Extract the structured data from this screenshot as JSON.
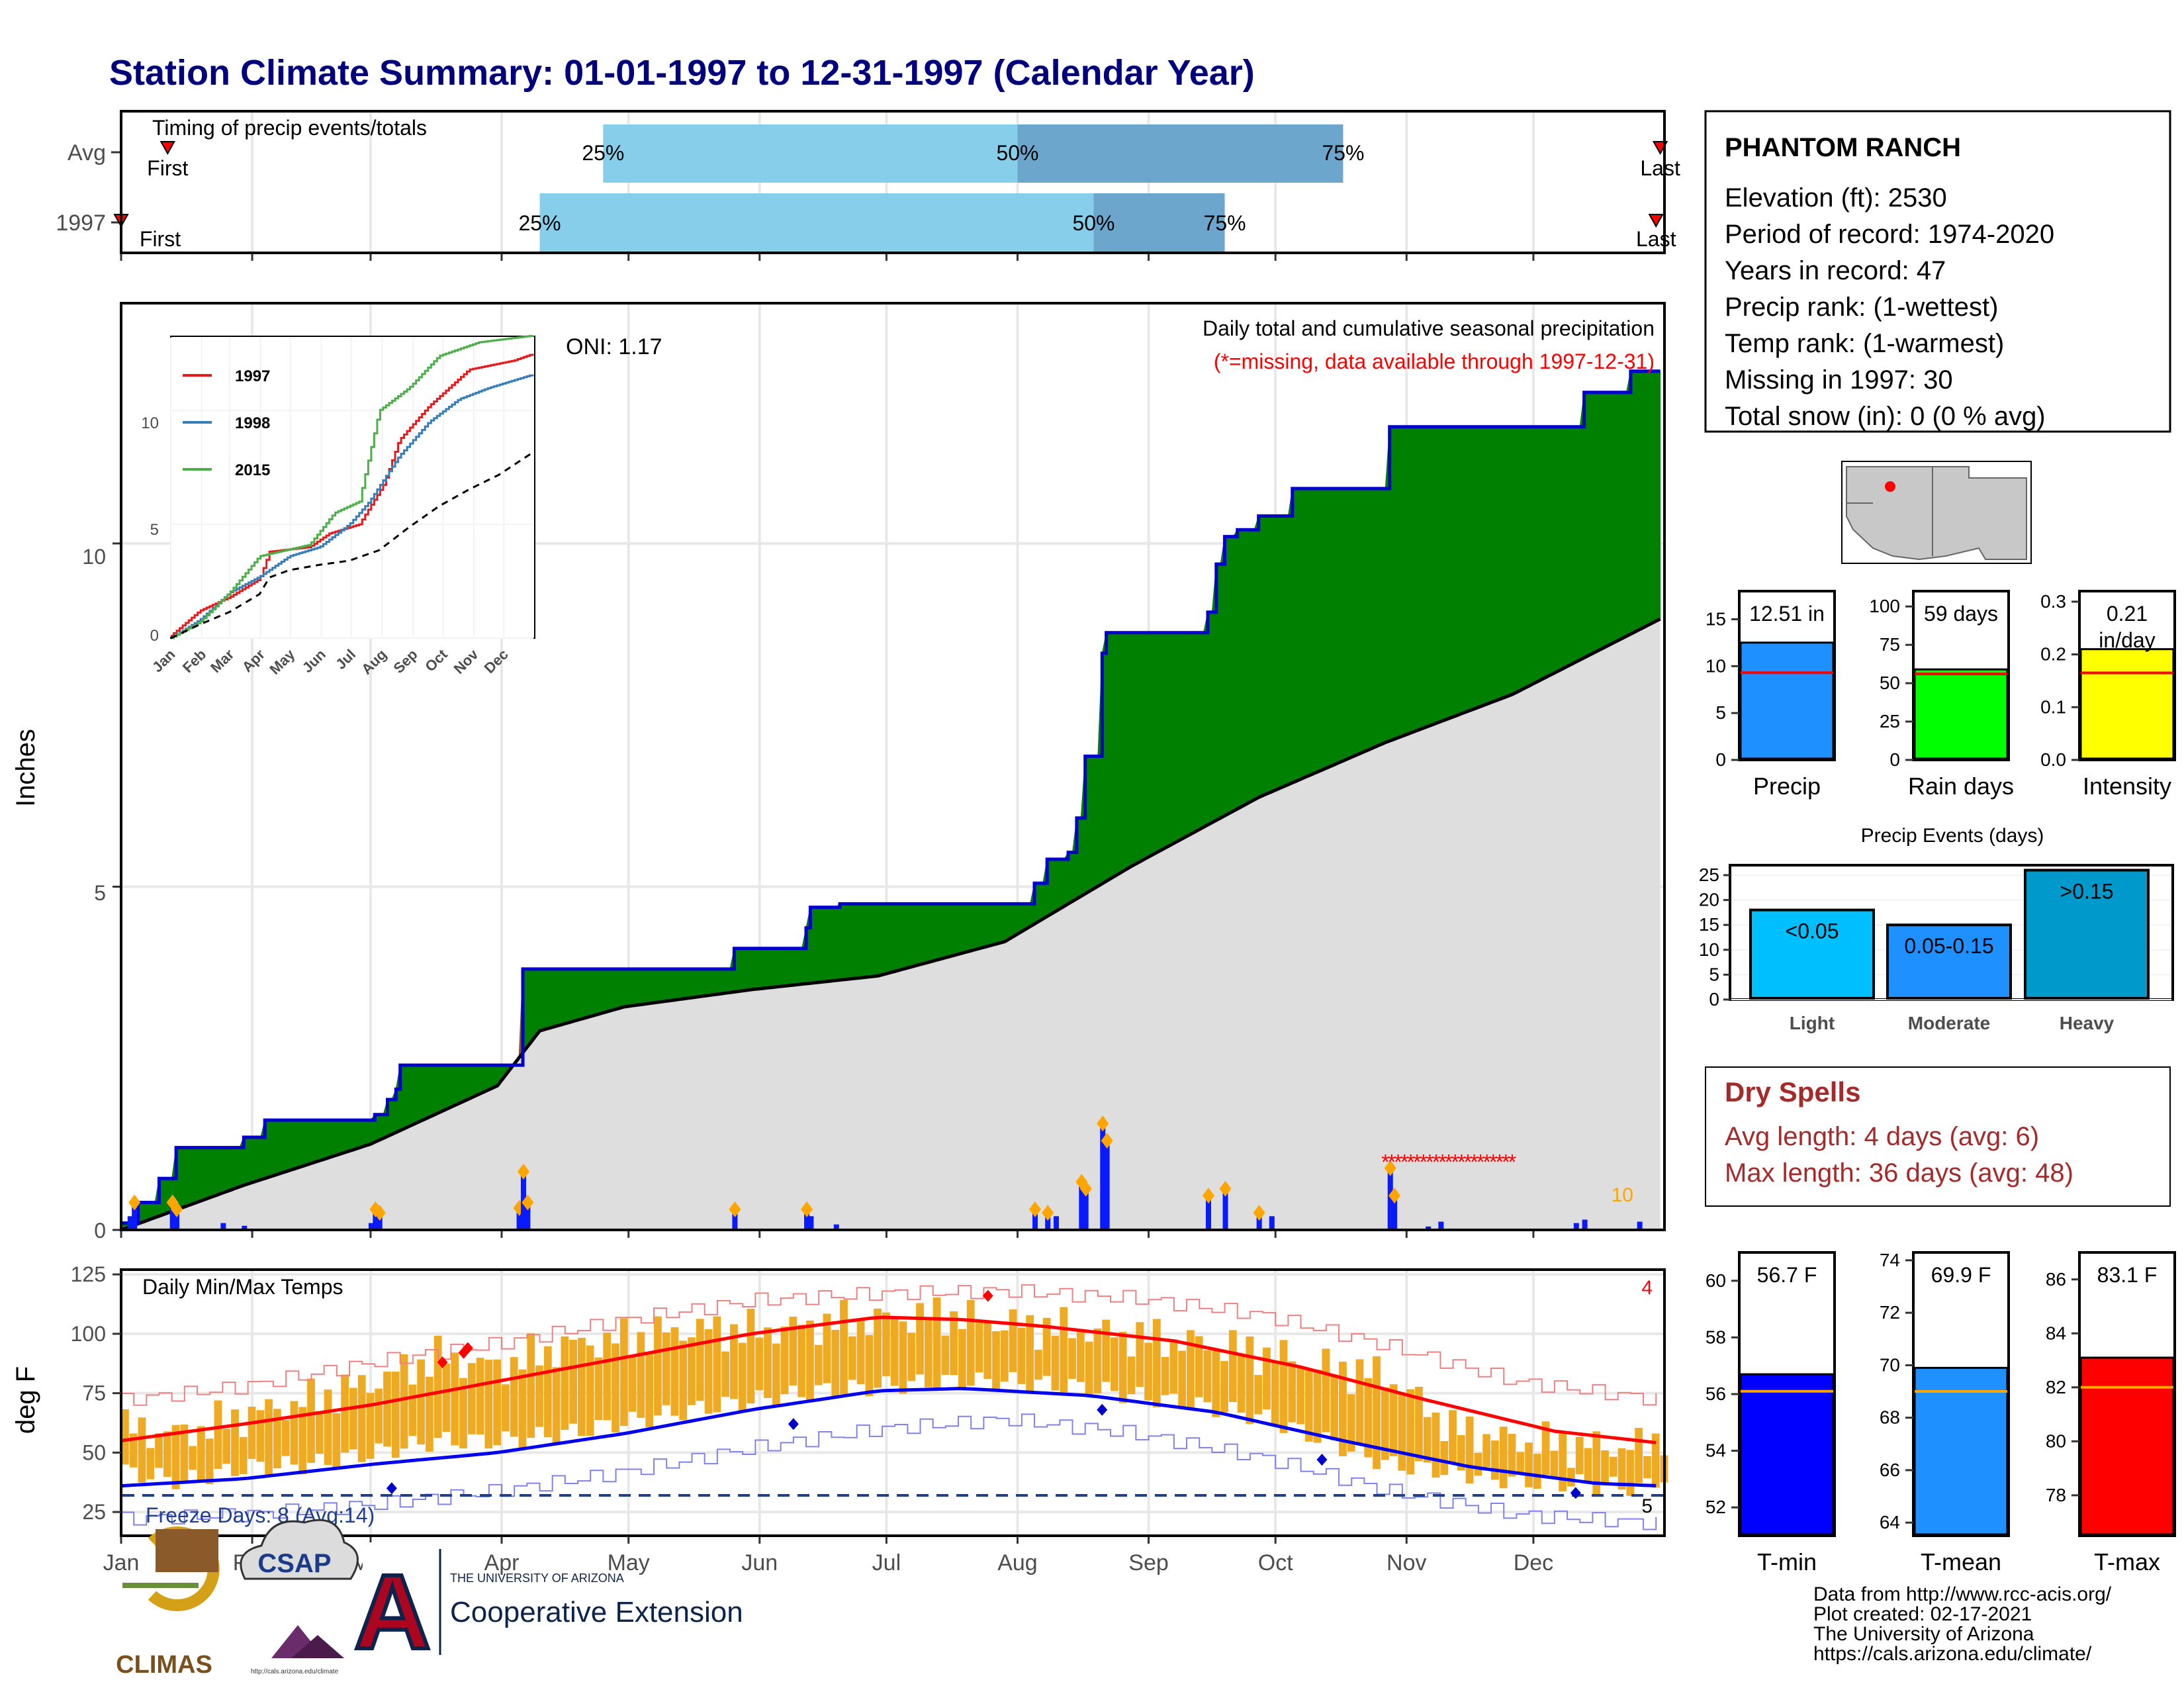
{
  "title": "Station Climate Summary: 01-01-1997 to 12-31-1997 (Calendar Year)",
  "colors": {
    "title": "#00007f",
    "precip_green": "#008000",
    "precip_line": "#0000cc",
    "dry_red": "#a52a2a",
    "q_light": "#87ceeb",
    "q_dark": "#6ca6cd",
    "temp_bar": "#eeaa22",
    "tmax": "#ff0000",
    "tmin": "#0000ee"
  },
  "timing": {
    "title": "Timing of precip events/totals",
    "rows": [
      {
        "label": "Avg",
        "first_label": "First",
        "last_label": "Last",
        "q25_label": "25%",
        "q50_label": "50%",
        "q75_label": "75%",
        "first": 12,
        "q25": 115,
        "q50": 213,
        "q75": 290,
        "last": 365
      },
      {
        "label": "1997",
        "first_label": "First",
        "last_label": "Last",
        "q25_label": "25%",
        "q50_label": "50%",
        "q75_label": "75%",
        "first": 1,
        "q25": 100,
        "q50": 231,
        "q75": 262,
        "last": 364
      }
    ]
  },
  "station": {
    "name": "PHANTOM RANCH",
    "lines": [
      "Elevation (ft): 2530",
      "Period of record: 1974-2020",
      "Years in record: 47",
      "Precip rank:  (1-wettest)",
      "Temp rank:  (1-warmest)",
      "Missing in 1997: 30",
      "Total snow (in): 0 (0 % avg)"
    ]
  },
  "precip_panel": {
    "ylabel": "Inches",
    "oni": "ONI: 1.17",
    "subtitle": "Daily total and cumulative seasonal precipitation",
    "missing_note": "(*=missing, data available through 1997-12-31)",
    "corner_count": "10",
    "y_ticks": [
      "0",
      "5",
      "10"
    ]
  },
  "inset": {
    "legend": [
      "1997",
      "1998",
      "2015"
    ],
    "y_ticks": [
      "0",
      "5",
      "10"
    ],
    "months": [
      "Jan",
      "Feb",
      "Mar",
      "Apr",
      "May",
      "Jun",
      "Jul",
      "Aug",
      "Sep",
      "Oct",
      "Nov",
      "Dec"
    ]
  },
  "temp_panel": {
    "title": "Daily Min/Max Temps",
    "ylabel": "deg F",
    "freeze_note": "Freeze Days: 8 (Avg:14)",
    "tmax_count": "4",
    "tmin_count": "5",
    "y_ticks": [
      "25",
      "50",
      "75",
      "100",
      "125"
    ]
  },
  "months": [
    "Jan",
    "Feb",
    "Mar",
    "Apr",
    "May",
    "Jun",
    "Jul",
    "Aug",
    "Sep",
    "Oct",
    "Nov",
    "Dec"
  ],
  "chart_data": [
    {
      "type": "area",
      "title": "Daily total and cumulative seasonal precipitation",
      "ylabel": "Inches",
      "ylim": [
        0,
        13.5
      ],
      "cumulative_1997": [
        [
          1,
          0.1
        ],
        [
          5,
          0.4
        ],
        [
          10,
          0.75
        ],
        [
          14,
          1.2
        ],
        [
          30,
          1.35
        ],
        [
          35,
          1.6
        ],
        [
          60,
          1.6
        ],
        [
          61,
          1.68
        ],
        [
          64,
          1.9
        ],
        [
          66,
          2.05
        ],
        [
          67,
          2.4
        ],
        [
          95,
          2.4
        ],
        [
          96,
          3.8
        ],
        [
          145,
          3.8
        ],
        [
          146,
          4.1
        ],
        [
          162,
          4.1
        ],
        [
          163,
          4.4
        ],
        [
          164,
          4.7
        ],
        [
          170,
          4.7
        ],
        [
          171,
          4.75
        ],
        [
          216,
          4.75
        ],
        [
          217,
          5.05
        ],
        [
          220,
          5.4
        ],
        [
          225,
          5.5
        ],
        [
          227,
          6.0
        ],
        [
          229,
          6.9
        ],
        [
          232,
          6.9
        ],
        [
          233,
          8.4
        ],
        [
          234,
          8.7
        ],
        [
          256,
          8.7
        ],
        [
          258,
          9.0
        ],
        [
          260,
          9.7
        ],
        [
          262,
          10.1
        ],
        [
          265,
          10.2
        ],
        [
          270,
          10.4
        ],
        [
          278,
          10.8
        ],
        [
          300,
          10.8
        ],
        [
          301,
          11.7
        ],
        [
          345,
          11.7
        ],
        [
          347,
          12.2
        ],
        [
          356,
          12.2
        ],
        [
          358,
          12.51
        ],
        [
          365,
          12.51
        ]
      ],
      "cumulative_avg": [
        [
          1,
          0
        ],
        [
          30,
          0.65
        ],
        [
          60,
          1.25
        ],
        [
          90,
          2.1
        ],
        [
          100,
          2.9
        ],
        [
          120,
          3.25
        ],
        [
          150,
          3.5
        ],
        [
          180,
          3.7
        ],
        [
          210,
          4.2
        ],
        [
          240,
          5.3
        ],
        [
          270,
          6.3
        ],
        [
          300,
          7.1
        ],
        [
          330,
          7.8
        ],
        [
          365,
          8.9
        ]
      ],
      "daily_1997": [
        [
          3,
          0.2
        ],
        [
          4,
          0.4
        ],
        [
          13,
          0.4
        ],
        [
          14,
          0.3
        ],
        [
          25,
          0.1
        ],
        [
          30,
          0.06
        ],
        [
          60,
          0.1
        ],
        [
          61,
          0.3
        ],
        [
          62,
          0.25
        ],
        [
          95,
          0.32
        ],
        [
          96,
          0.85
        ],
        [
          97,
          0.4
        ],
        [
          146,
          0.3
        ],
        [
          163,
          0.3
        ],
        [
          164,
          0.2
        ],
        [
          170,
          0.08
        ],
        [
          217,
          0.3
        ],
        [
          220,
          0.25
        ],
        [
          222,
          0.2
        ],
        [
          228,
          0.7
        ],
        [
          229,
          0.6
        ],
        [
          233,
          1.55
        ],
        [
          234,
          1.3
        ],
        [
          258,
          0.5
        ],
        [
          262,
          0.6
        ],
        [
          270,
          0.25
        ],
        [
          273,
          0.2
        ],
        [
          301,
          0.9
        ],
        [
          302,
          0.5
        ],
        [
          310,
          0.05
        ],
        [
          313,
          0.12
        ],
        [
          345,
          0.1
        ],
        [
          347,
          0.15
        ],
        [
          360,
          0.12
        ]
      ],
      "missing_days": [
        300,
        330
      ]
    },
    {
      "type": "line",
      "title": "",
      "ylim": [
        0,
        13
      ],
      "series": [
        {
          "name": "1997",
          "values": [
            [
              1,
              0.1
            ],
            [
              30,
              1.2
            ],
            [
              60,
              1.8
            ],
            [
              90,
              2.6
            ],
            [
              100,
              3.8
            ],
            [
              140,
              4.0
            ],
            [
              160,
              4.6
            ],
            [
              190,
              5.0
            ],
            [
              215,
              6.8
            ],
            [
              230,
              8.7
            ],
            [
              260,
              10.2
            ],
            [
              300,
              11.8
            ],
            [
              345,
              12.2
            ],
            [
              365,
              12.51
            ]
          ]
        },
        {
          "name": "1998",
          "values": [
            [
              1,
              0
            ],
            [
              30,
              0.8
            ],
            [
              60,
              2.0
            ],
            [
              90,
              2.7
            ],
            [
              120,
              3.6
            ],
            [
              150,
              4.0
            ],
            [
              180,
              5.0
            ],
            [
              200,
              6.0
            ],
            [
              230,
              8.0
            ],
            [
              260,
              9.5
            ],
            [
              290,
              10.5
            ],
            [
              320,
              11.0
            ],
            [
              365,
              11.6
            ]
          ]
        },
        {
          "name": "2015",
          "values": [
            [
              1,
              0
            ],
            [
              30,
              0.7
            ],
            [
              60,
              2.0
            ],
            [
              90,
              3.6
            ],
            [
              110,
              3.8
            ],
            [
              140,
              4.1
            ],
            [
              165,
              5.5
            ],
            [
              190,
              6.0
            ],
            [
              210,
              10.0
            ],
            [
              240,
              11.0
            ],
            [
              270,
              12.4
            ],
            [
              310,
              13.0
            ],
            [
              365,
              13.3
            ]
          ]
        }
      ]
    },
    {
      "type": "bar",
      "title": "",
      "categories": [
        "Precip",
        "Rain days",
        "Intensity"
      ],
      "values": [
        12.51,
        59,
        0.21
      ],
      "labels": [
        "12.51 in",
        "59 days",
        "0.21 in/day"
      ],
      "averages": [
        9.3,
        56,
        0.165
      ],
      "ylims": [
        [
          0,
          18
        ],
        [
          0,
          110
        ],
        [
          0,
          0.32
        ]
      ],
      "y_ticks": [
        [
          "0",
          "5",
          "10",
          "15"
        ],
        [
          "0",
          "25",
          "50",
          "75",
          "100"
        ],
        [
          "0.0",
          "0.1",
          "0.2",
          "0.3"
        ]
      ],
      "colors": [
        "#1e90ff",
        "#00ff00",
        "#ffff00"
      ]
    },
    {
      "type": "bar",
      "title": "Precip Events (days)",
      "categories": [
        "Light",
        "Moderate",
        "Heavy"
      ],
      "labels": [
        "<0.05",
        "0.05-0.15",
        ">0.15"
      ],
      "values": [
        18,
        15,
        26
      ],
      "ylim": [
        0,
        27
      ],
      "y_ticks": [
        "0",
        "5",
        "10",
        "15",
        "20",
        "25"
      ]
    },
    {
      "type": "bar",
      "title": "Dry Spells",
      "categories": [
        "Avg length",
        "Max length"
      ],
      "lines": [
        "Avg length: 4 days (avg: 6)",
        "Max length: 36 days (avg: 48)"
      ]
    },
    {
      "type": "line",
      "title": "Daily Min/Max Temps",
      "ylabel": "deg F",
      "ylim": [
        15,
        127
      ],
      "freeze_line": 32,
      "normal_max": [
        [
          1,
          55
        ],
        [
          30,
          62
        ],
        [
          60,
          70
        ],
        [
          90,
          80
        ],
        [
          120,
          90
        ],
        [
          150,
          100
        ],
        [
          180,
          107
        ],
        [
          200,
          106
        ],
        [
          220,
          103
        ],
        [
          250,
          97
        ],
        [
          280,
          86
        ],
        [
          310,
          72
        ],
        [
          340,
          59
        ],
        [
          365,
          54
        ]
      ],
      "normal_min": [
        [
          1,
          36
        ],
        [
          30,
          39
        ],
        [
          60,
          45
        ],
        [
          90,
          50
        ],
        [
          120,
          58
        ],
        [
          150,
          68
        ],
        [
          180,
          76
        ],
        [
          200,
          77
        ],
        [
          230,
          74
        ],
        [
          260,
          67
        ],
        [
          290,
          55
        ],
        [
          320,
          44
        ],
        [
          350,
          37
        ],
        [
          365,
          36
        ]
      ],
      "record_max": [
        [
          1,
          72
        ],
        [
          30,
          78
        ],
        [
          60,
          88
        ],
        [
          90,
          96
        ],
        [
          120,
          106
        ],
        [
          150,
          114
        ],
        [
          180,
          117
        ],
        [
          210,
          118
        ],
        [
          240,
          115
        ],
        [
          270,
          108
        ],
        [
          300,
          95
        ],
        [
          330,
          80
        ],
        [
          365,
          72
        ]
      ],
      "record_min": [
        [
          1,
          22
        ],
        [
          30,
          24
        ],
        [
          60,
          28
        ],
        [
          90,
          34
        ],
        [
          120,
          42
        ],
        [
          150,
          52
        ],
        [
          180,
          60
        ],
        [
          210,
          64
        ],
        [
          240,
          58
        ],
        [
          270,
          48
        ],
        [
          300,
          34
        ],
        [
          330,
          24
        ],
        [
          365,
          20
        ]
      ],
      "daily_max": [
        [
          1,
          60
        ],
        [
          15,
          58
        ],
        [
          30,
          66
        ],
        [
          45,
          72
        ],
        [
          60,
          80
        ],
        [
          75,
          90
        ],
        [
          90,
          86
        ],
        [
          105,
          95
        ],
        [
          120,
          98
        ],
        [
          135,
          102
        ],
        [
          150,
          101
        ],
        [
          165,
          104
        ],
        [
          180,
          106
        ],
        [
          195,
          108
        ],
        [
          210,
          104
        ],
        [
          225,
          102
        ],
        [
          240,
          99
        ],
        [
          255,
          96
        ],
        [
          270,
          92
        ],
        [
          285,
          86
        ],
        [
          300,
          82
        ],
        [
          315,
          60
        ],
        [
          330,
          55
        ],
        [
          345,
          53
        ],
        [
          360,
          52
        ],
        [
          365,
          58
        ]
      ],
      "daily_min": [
        [
          1,
          42
        ],
        [
          15,
          38
        ],
        [
          30,
          44
        ],
        [
          45,
          45
        ],
        [
          60,
          50
        ],
        [
          75,
          55
        ],
        [
          90,
          55
        ],
        [
          105,
          58
        ],
        [
          120,
          63
        ],
        [
          135,
          68
        ],
        [
          150,
          72
        ],
        [
          165,
          76
        ],
        [
          180,
          78
        ],
        [
          195,
          80
        ],
        [
          210,
          80
        ],
        [
          225,
          78
        ],
        [
          240,
          74
        ],
        [
          255,
          70
        ],
        [
          270,
          65
        ],
        [
          285,
          55
        ],
        [
          300,
          45
        ],
        [
          315,
          42
        ],
        [
          330,
          38
        ],
        [
          345,
          37
        ],
        [
          360,
          35
        ],
        [
          365,
          40
        ]
      ]
    },
    {
      "type": "bar",
      "title": "",
      "categories": [
        "T-min",
        "T-mean",
        "T-max"
      ],
      "values": [
        56.7,
        69.9,
        83.1
      ],
      "labels": [
        "56.7 F",
        "69.9 F",
        "83.1 F"
      ],
      "averages": [
        56.1,
        69.0,
        82.0
      ],
      "ylims": [
        [
          51,
          61
        ],
        [
          63.5,
          74.3
        ],
        [
          76.5,
          87
        ]
      ],
      "y_ticks": [
        [
          "52",
          "54",
          "56",
          "58",
          "60"
        ],
        [
          "64",
          "66",
          "68",
          "70",
          "72",
          "74"
        ],
        [
          "78",
          "80",
          "82",
          "84",
          "86"
        ]
      ],
      "colors": [
        "#0000ff",
        "#1e90ff",
        "#ff0000"
      ]
    }
  ],
  "footer": {
    "logos": [
      "CLIMAS",
      "CSAP"
    ],
    "ua_small": "THE UNIVERSITY OF ARIZONA",
    "ua_big": "Cooperative Extension",
    "csap_url": "http://cals.arizona.edu/climate",
    "credit_lines": [
      "Data from http://www.rcc-acis.org/",
      "Plot created: 02-17-2021",
      "The University of Arizona",
      "https://cals.arizona.edu/climate/"
    ]
  }
}
